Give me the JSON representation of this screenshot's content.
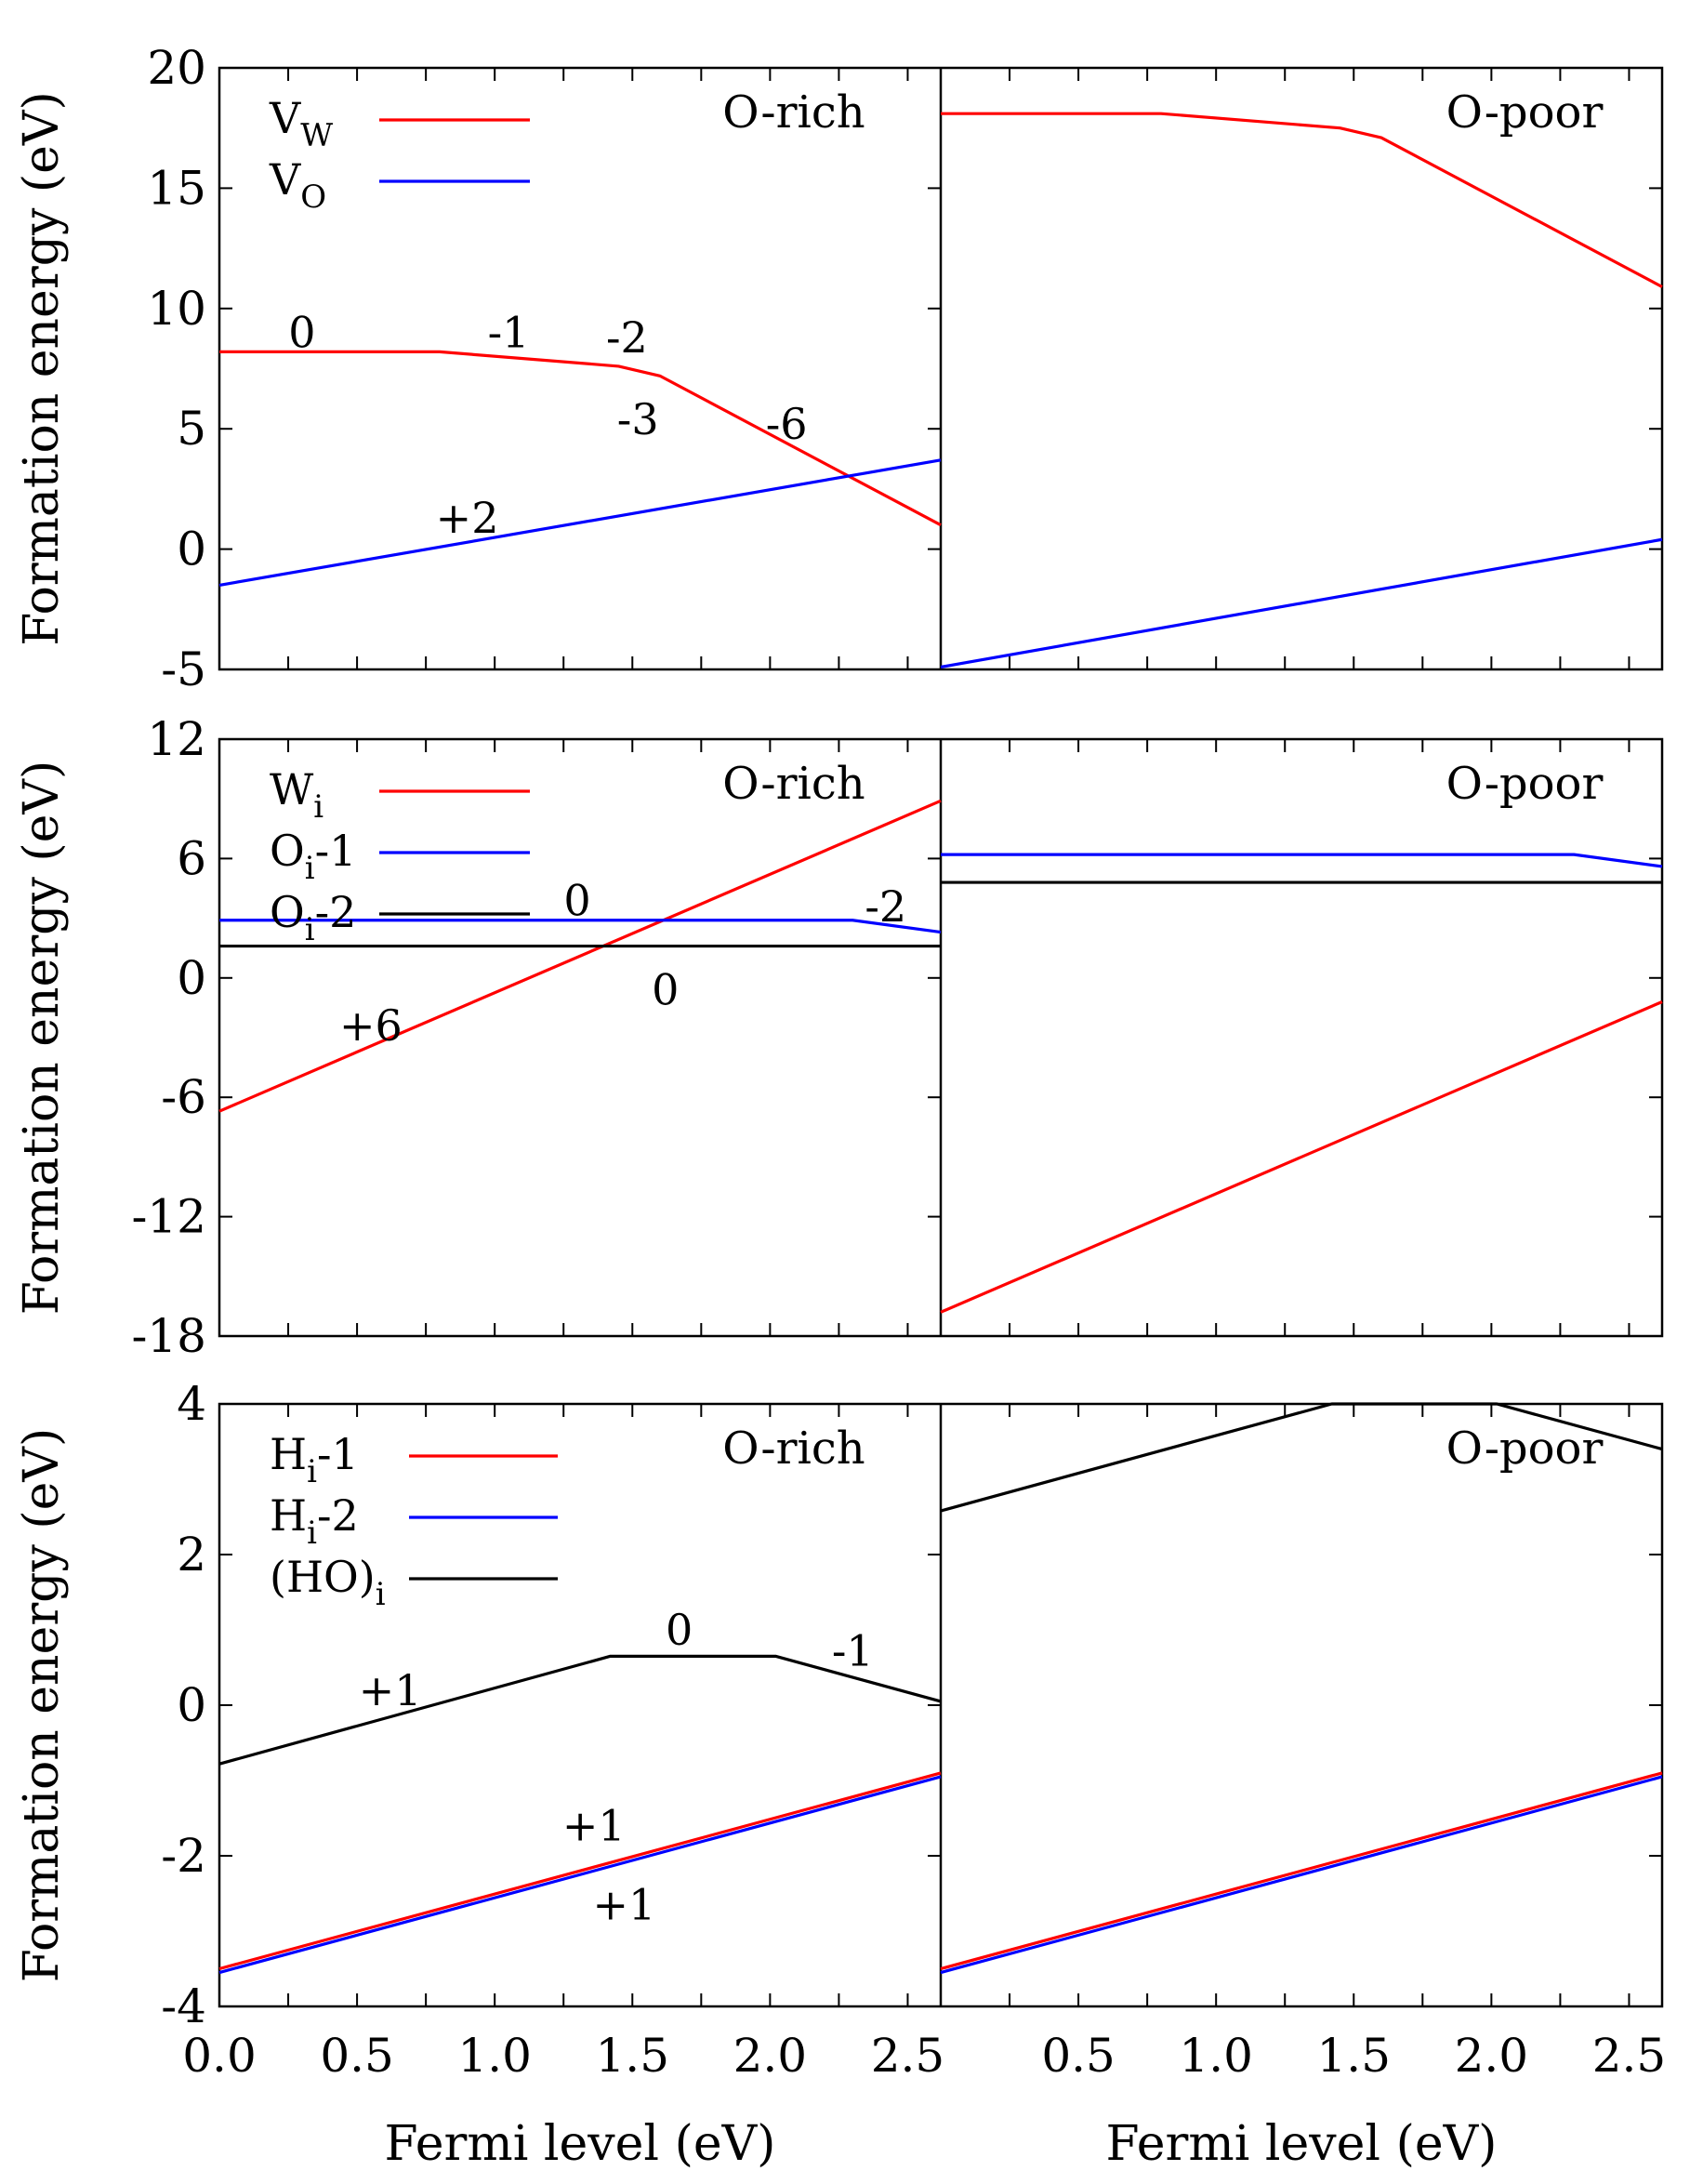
{
  "chart_data": [
    {
      "type": "line",
      "ylabel": "Formation energy (eV)",
      "xlim": [
        0,
        2.62
      ],
      "ylim": [
        -5,
        20
      ],
      "yticks": [
        "-5",
        "0",
        "5",
        "10",
        "15",
        "20"
      ],
      "legend": [
        {
          "main": "V",
          "sub": "W",
          "suffix": "",
          "color": "#ff0000"
        },
        {
          "main": "V",
          "sub": "O",
          "suffix": "",
          "color": "#0000ff"
        }
      ],
      "panels": [
        {
          "label": "O-rich",
          "series": [
            {
              "name": "V_W",
              "color": "#ff0000",
              "x": [
                0,
                0.8,
                1.45,
                1.6,
                2.62
              ],
              "y": [
                8.2,
                8.2,
                7.6,
                7.2,
                1.0
              ]
            },
            {
              "name": "V_O",
              "color": "#0000ff",
              "x": [
                0,
                2.62
              ],
              "y": [
                -1.5,
                3.7
              ]
            }
          ],
          "annotations": [
            {
              "text": "0",
              "x": 0.3,
              "y": 9.0
            },
            {
              "text": "-1",
              "x": 1.05,
              "y": 9.0
            },
            {
              "text": "-2",
              "x": 1.48,
              "y": 8.8
            },
            {
              "text": "-3",
              "x": 1.52,
              "y": 5.4
            },
            {
              "text": "-6",
              "x": 2.06,
              "y": 5.2
            },
            {
              "text": "+2",
              "x": 0.9,
              "y": 1.3
            }
          ]
        },
        {
          "label": "O-poor",
          "series": [
            {
              "name": "V_W",
              "color": "#ff0000",
              "x": [
                0,
                0.8,
                1.45,
                1.6,
                2.62
              ],
              "y": [
                18.1,
                18.1,
                17.5,
                17.1,
                10.9
              ]
            },
            {
              "name": "V_O",
              "color": "#0000ff",
              "x": [
                0,
                2.62
              ],
              "y": [
                -4.9,
                0.4
              ]
            }
          ],
          "annotations": []
        }
      ]
    },
    {
      "type": "line",
      "ylabel": "Formation energy (eV)",
      "xlim": [
        0,
        2.62
      ],
      "ylim": [
        -18,
        12
      ],
      "yticks": [
        "-18",
        "-12",
        "-6",
        "0",
        "6",
        "12"
      ],
      "legend": [
        {
          "main": "W",
          "sub": "i",
          "suffix": "",
          "color": "#ff0000"
        },
        {
          "main": "O",
          "sub": "i",
          "suffix": "-1",
          "color": "#0000ff"
        },
        {
          "main": "O",
          "sub": "i",
          "suffix": "-2",
          "color": "#000000"
        }
      ],
      "panels": [
        {
          "label": "O-rich",
          "series": [
            {
              "name": "W_i",
              "color": "#ff0000",
              "x": [
                0,
                2.62
              ],
              "y": [
                -6.7,
                8.9
              ]
            },
            {
              "name": "O_i-1",
              "color": "#0000ff",
              "x": [
                0,
                2.3,
                2.62
              ],
              "y": [
                2.9,
                2.9,
                2.3
              ]
            },
            {
              "name": "O_i-2",
              "color": "#000000",
              "x": [
                0,
                2.62
              ],
              "y": [
                1.6,
                1.6
              ]
            }
          ],
          "annotations": [
            {
              "text": "0",
              "x": 1.3,
              "y": 3.9
            },
            {
              "text": "-2",
              "x": 2.42,
              "y": 3.6
            },
            {
              "text": "0",
              "x": 1.62,
              "y": -0.6
            },
            {
              "text": "+6",
              "x": 0.55,
              "y": -2.4
            }
          ]
        },
        {
          "label": "O-poor",
          "series": [
            {
              "name": "W_i",
              "color": "#ff0000",
              "x": [
                0,
                2.62
              ],
              "y": [
                -16.8,
                -1.2
              ]
            },
            {
              "name": "O_i-1",
              "color": "#0000ff",
              "x": [
                0,
                2.3,
                2.62
              ],
              "y": [
                6.2,
                6.2,
                5.6
              ]
            },
            {
              "name": "O_i-2",
              "color": "#000000",
              "x": [
                0,
                2.62
              ],
              "y": [
                4.8,
                4.8
              ]
            }
          ],
          "annotations": []
        }
      ]
    },
    {
      "type": "line",
      "xlabel": "Fermi level (eV)",
      "ylabel": "Formation energy (eV)",
      "xlim": [
        0,
        2.62
      ],
      "ylim": [
        -4,
        4
      ],
      "yticks": [
        "-4",
        "-2",
        "0",
        "2",
        "4"
      ],
      "xticks": [
        [
          "0.0",
          "0.5",
          "1.0",
          "1.5",
          "2.0",
          "2.5"
        ],
        [
          "0.5",
          "1.0",
          "1.5",
          "2.0",
          "2.5"
        ]
      ],
      "legend": [
        {
          "main": "H",
          "sub": "i",
          "suffix": "-1",
          "color": "#ff0000"
        },
        {
          "main": "H",
          "sub": "i",
          "suffix": "-2",
          "color": "#0000ff"
        },
        {
          "main": "(HO)",
          "sub": "i",
          "suffix": "",
          "color": "#000000"
        }
      ],
      "panels": [
        {
          "label": "O-rich",
          "series": [
            {
              "name": "H_i-1",
              "color": "#ff0000",
              "x": [
                0,
                2.62
              ],
              "y": [
                -3.5,
                -0.9
              ]
            },
            {
              "name": "H_i-2",
              "color": "#0000ff",
              "x": [
                0,
                2.62
              ],
              "y": [
                -3.55,
                -0.95
              ]
            },
            {
              "name": "(HO)_i",
              "color": "#000000",
              "x": [
                0,
                1.42,
                2.02,
                2.62
              ],
              "y": [
                -0.78,
                0.65,
                0.65,
                0.05
              ]
            }
          ],
          "annotations": [
            {
              "text": "+1",
              "x": 0.62,
              "y": 0.2
            },
            {
              "text": "0",
              "x": 1.67,
              "y": 1.0
            },
            {
              "text": "-1",
              "x": 2.3,
              "y": 0.72
            },
            {
              "text": "+1",
              "x": 1.36,
              "y": -1.6
            },
            {
              "text": "+1",
              "x": 1.47,
              "y": -2.65
            }
          ]
        },
        {
          "label": "O-poor",
          "series": [
            {
              "name": "H_i-1",
              "color": "#ff0000",
              "x": [
                0,
                2.62
              ],
              "y": [
                -3.5,
                -0.9
              ]
            },
            {
              "name": "H_i-2",
              "color": "#0000ff",
              "x": [
                0,
                2.62
              ],
              "y": [
                -3.55,
                -0.95
              ]
            },
            {
              "name": "(HO)_i",
              "color": "#000000",
              "x": [
                0,
                1.42,
                2.02,
                2.62
              ],
              "y": [
                2.58,
                4.0,
                4.0,
                3.4
              ]
            }
          ],
          "annotations": []
        }
      ]
    }
  ]
}
